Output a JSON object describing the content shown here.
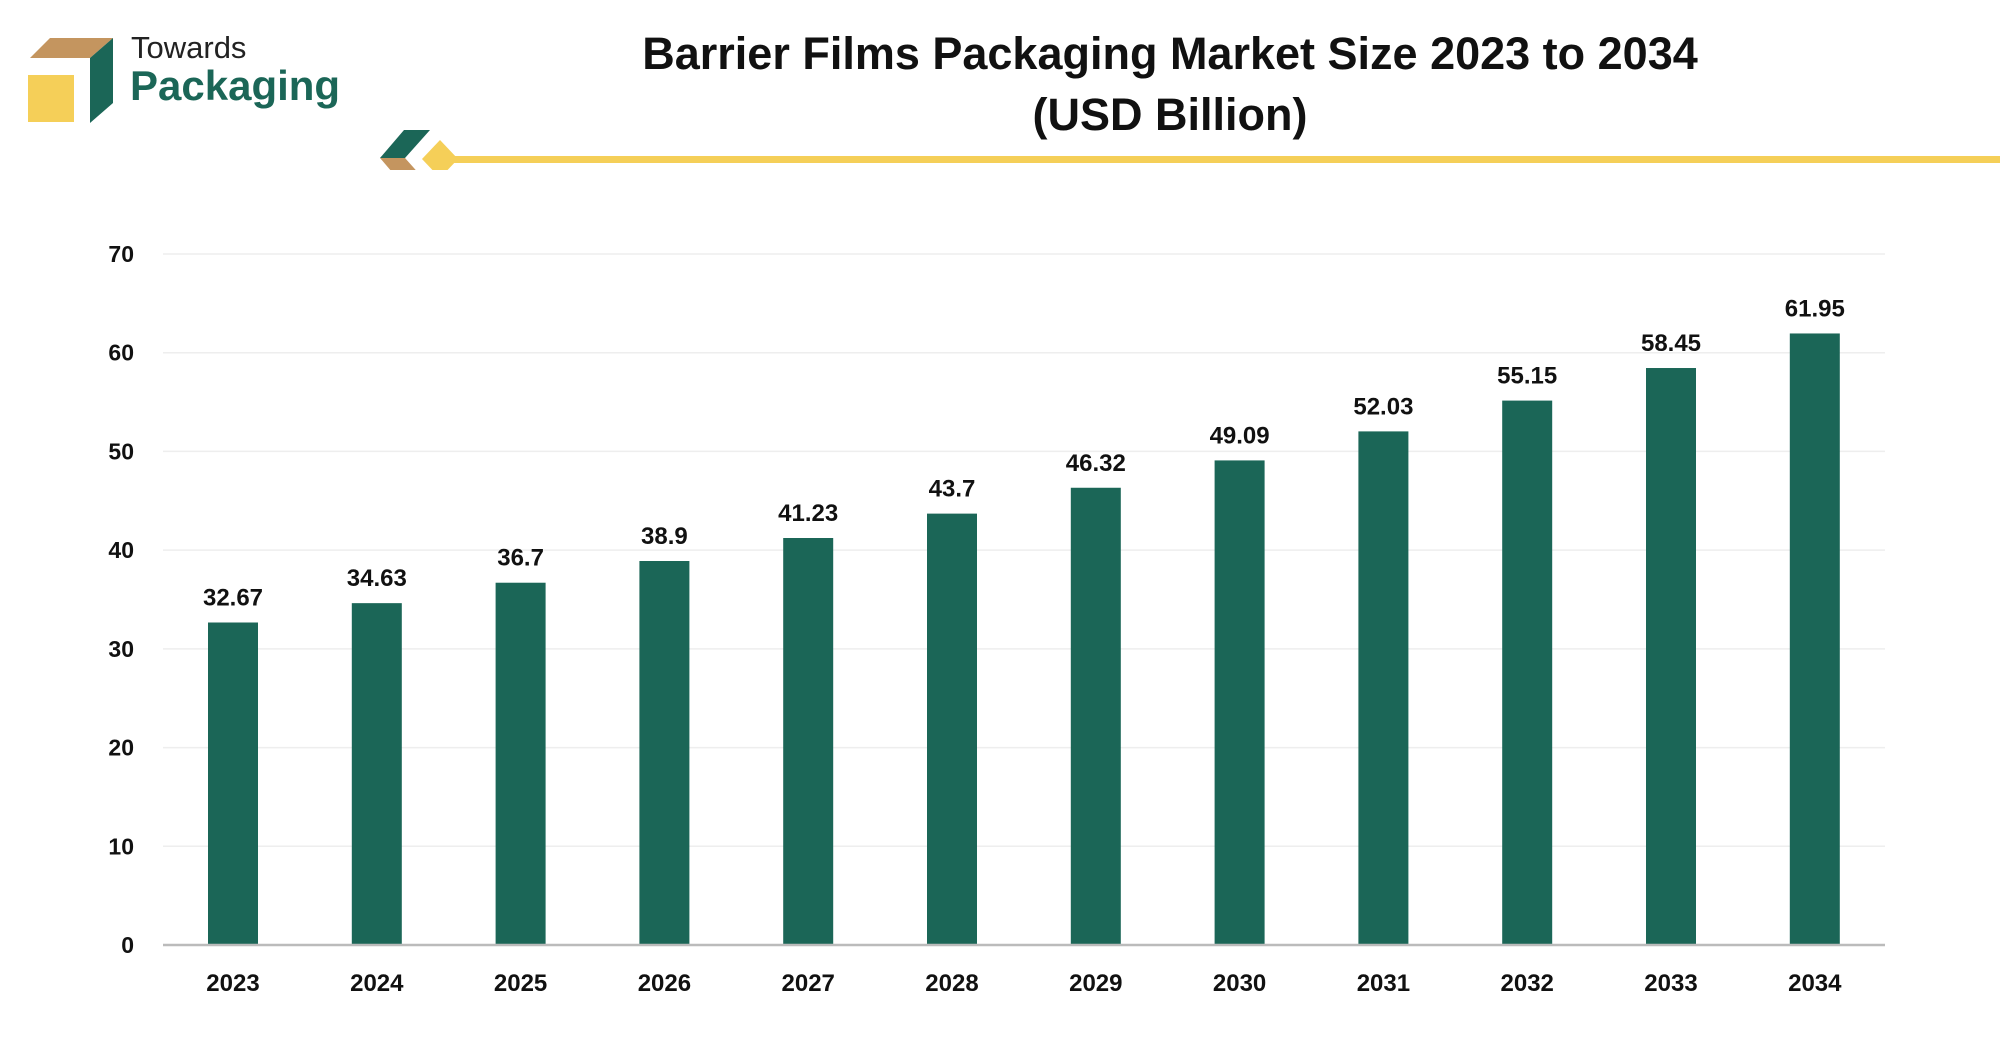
{
  "logo": {
    "line1": "Towards",
    "line2": "Packaging"
  },
  "colors": {
    "bar": "#1b6657",
    "accent_yellow": "#f5cf58",
    "accent_tan": "#c4955f",
    "grid": "#eeeeee",
    "axis": "#bbbbbb"
  },
  "chart_data": {
    "type": "bar",
    "title": "Barrier Films Packaging Market Size 2023 to 2034",
    "subtitle": "(USD Billion)",
    "categories": [
      "2023",
      "2024",
      "2025",
      "2026",
      "2027",
      "2028",
      "2029",
      "2030",
      "2031",
      "2032",
      "2033",
      "2034"
    ],
    "values": [
      32.67,
      34.63,
      36.7,
      38.9,
      41.23,
      43.7,
      46.32,
      49.09,
      52.03,
      55.15,
      58.45,
      61.95
    ],
    "value_labels": [
      "32.67",
      "34.63",
      "36.7",
      "38.9",
      "41.23",
      "43.7",
      "46.32",
      "49.09",
      "52.03",
      "55.15",
      "58.45",
      "61.95"
    ],
    "ylim": [
      0,
      70
    ],
    "yticks": [
      "0",
      "10",
      "20",
      "30",
      "40",
      "50",
      "60",
      "70"
    ],
    "grid": true,
    "xlabel": "",
    "ylabel": ""
  }
}
